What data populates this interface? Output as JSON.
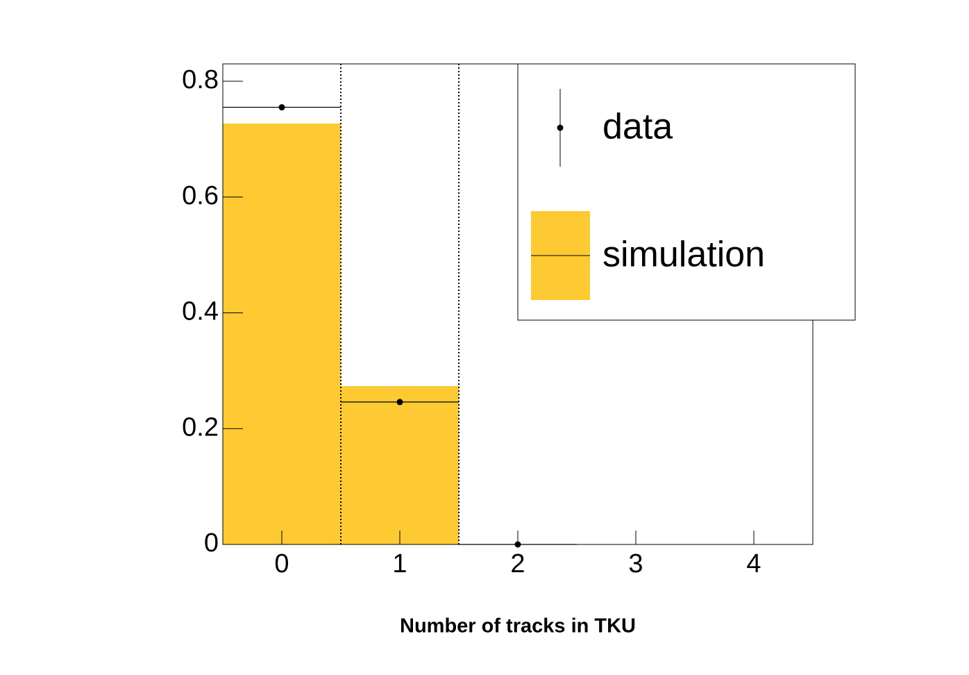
{
  "chart_data": {
    "type": "histogram",
    "xlabel": "Number of tracks in TKU",
    "bins": [
      -0.5,
      0.5,
      1.5,
      2.5,
      3.5,
      4.5
    ],
    "series": [
      {
        "name": "simulation",
        "color": "#fdca33",
        "values": [
          0.727,
          0.2735,
          0,
          0,
          0
        ]
      },
      {
        "name": "data",
        "color": "#000000",
        "values": [
          0.755,
          0.246,
          0,
          null,
          null
        ]
      }
    ],
    "vlines": [
      0.5,
      1.5
    ],
    "xlim": [
      -0.5,
      4.5
    ],
    "xticks": [
      0,
      1,
      2,
      3,
      4
    ],
    "ylim": [
      0,
      0.83
    ],
    "yticks": [
      0,
      0.2,
      0.4,
      0.6,
      0.8
    ],
    "legend": "upper right"
  }
}
